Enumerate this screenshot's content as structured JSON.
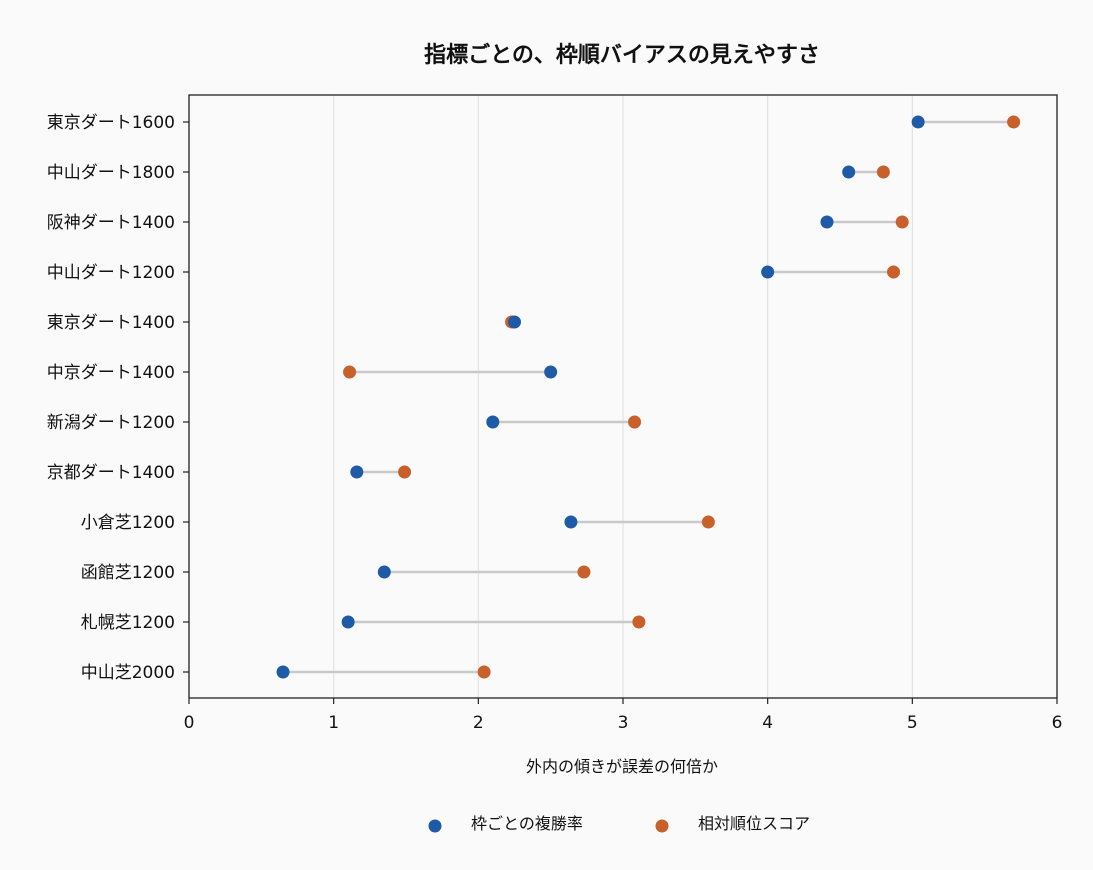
{
  "chart_data": {
    "type": "dumbbell",
    "title": "指標ごとの、枠順バイアスの見えやすさ",
    "xlabel": "外内の傾きが誤差の何倍か",
    "ylabel": "",
    "xlim": [
      0,
      6
    ],
    "x_ticks": [
      "0",
      "1",
      "2",
      "3",
      "4",
      "5",
      "6"
    ],
    "grid": "x-axis vertical",
    "legend_position": "bottom-center",
    "categories": [
      "東京ダート1600",
      "中山ダート1800",
      "阪神ダート1400",
      "中山ダート1200",
      "東京ダート1400",
      "中京ダート1400",
      "新潟ダート1200",
      "京都ダート1400",
      "小倉芝1200",
      "函館芝1200",
      "札幌芝1200",
      "中山芝2000"
    ],
    "series": [
      {
        "name": "枠ごとの複勝率",
        "color": "#1f5aa6",
        "values": [
          5.04,
          4.56,
          4.41,
          4.0,
          2.25,
          2.5,
          2.1,
          1.16,
          2.64,
          1.35,
          1.1,
          0.65
        ]
      },
      {
        "name": "相対順位スコア",
        "color": "#c8602c",
        "values": [
          5.7,
          4.8,
          4.93,
          4.87,
          2.23,
          1.11,
          3.08,
          1.49,
          3.59,
          2.73,
          3.11,
          2.04
        ]
      }
    ],
    "connector_color": "#c9c9c9",
    "grid_color": "#e3e3e3"
  }
}
